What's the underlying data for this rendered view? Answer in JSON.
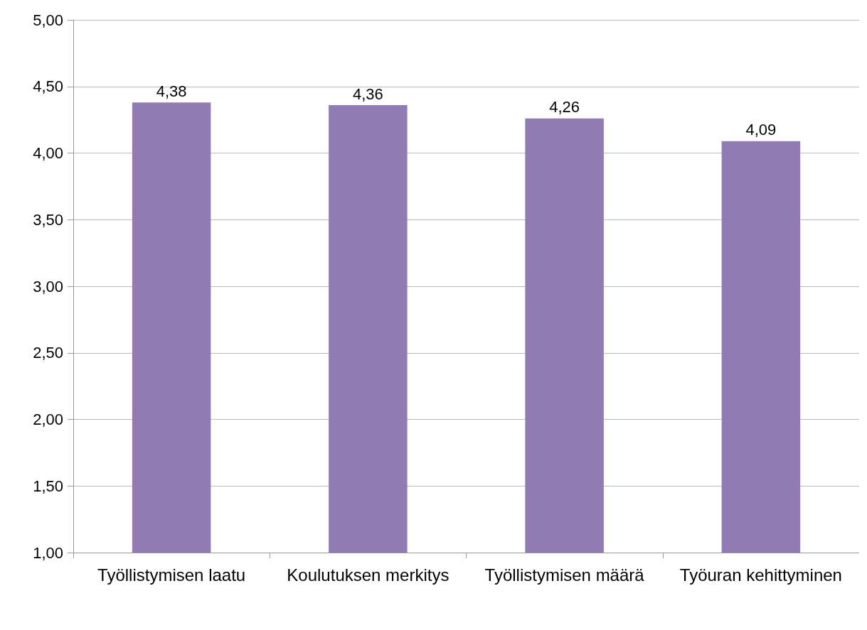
{
  "chart_data": {
    "type": "bar",
    "categories": [
      "Työllistymisen laatu",
      "Koulutuksen merkitys",
      "Työllistymisen määrä",
      "Työuran kehittyminen"
    ],
    "values": [
      4.38,
      4.36,
      4.26,
      4.09
    ],
    "value_labels": [
      "4,38",
      "4,36",
      "4,26",
      "4,09"
    ],
    "color": "#907cb2",
    "ylim": [
      1,
      5
    ],
    "yticks": [
      {
        "value": 1,
        "label": "1,00"
      },
      {
        "value": 1.5,
        "label": "1,50"
      },
      {
        "value": 2,
        "label": "2,00"
      },
      {
        "value": 2.5,
        "label": "2,50"
      },
      {
        "value": 3,
        "label": "3,00"
      },
      {
        "value": 3.5,
        "label": "3,50"
      },
      {
        "value": 4,
        "label": "4,00"
      },
      {
        "value": 4.5,
        "label": "4,50"
      },
      {
        "value": 5,
        "label": "5,00"
      }
    ],
    "grid": "y"
  }
}
